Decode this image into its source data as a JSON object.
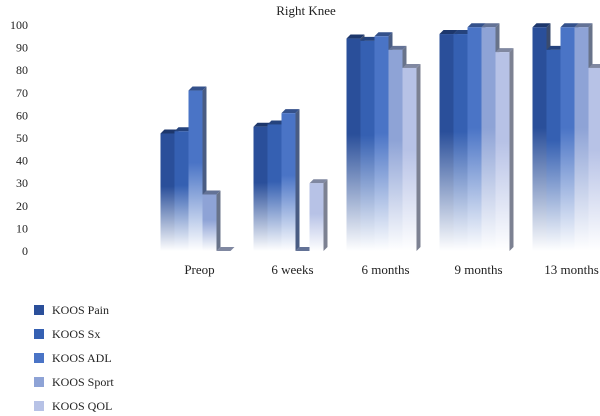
{
  "chart_data": {
    "type": "bar",
    "title": "Right Knee",
    "xlabel": "",
    "ylabel": "",
    "ylim": [
      0,
      100
    ],
    "yticks": [
      0,
      10,
      20,
      30,
      40,
      50,
      60,
      70,
      80,
      90,
      100
    ],
    "categories": [
      "",
      "Preop",
      "6 weeks",
      "6 months",
      "9 months",
      "13 months"
    ],
    "legend_position": "bottom-left",
    "grid": false,
    "series": [
      {
        "name": "KOOS Pain",
        "color": "#2a4f9a",
        "values": [
          null,
          52,
          55,
          94,
          96,
          99
        ]
      },
      {
        "name": "KOOS Sx",
        "color": "#3560b2",
        "values": [
          null,
          53,
          56,
          93,
          96,
          89
        ]
      },
      {
        "name": "KOOS ADL",
        "color": "#4a74c6",
        "values": [
          null,
          71,
          61,
          95,
          99,
          99
        ]
      },
      {
        "name": "KOOS Sport",
        "color": "#8ea3d6",
        "values": [
          null,
          25,
          0,
          89,
          99,
          99
        ]
      },
      {
        "name": "KOOS QOL",
        "color": "#b7c2e6",
        "values": [
          null,
          0,
          30,
          81,
          88,
          81
        ]
      }
    ]
  }
}
